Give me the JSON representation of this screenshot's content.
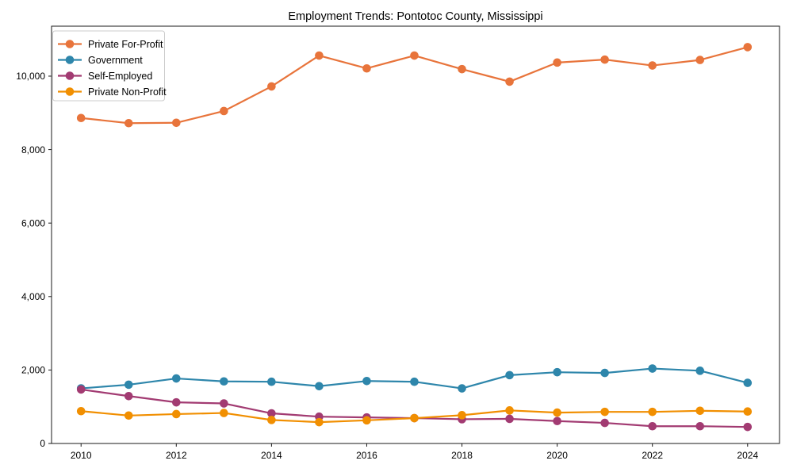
{
  "chart_data": {
    "type": "line",
    "title": "Employment Trends: Pontotoc County, Mississippi",
    "xlabel": "",
    "ylabel": "",
    "x": [
      2010,
      2011,
      2012,
      2013,
      2014,
      2015,
      2016,
      2017,
      2018,
      2019,
      2020,
      2021,
      2022,
      2023,
      2024
    ],
    "series": [
      {
        "name": "Private For-Profit",
        "color": "#e8743b",
        "values": [
          8860,
          8720,
          8730,
          9050,
          9720,
          10560,
          10210,
          10560,
          10190,
          9850,
          10370,
          10450,
          10290,
          10440,
          10790
        ]
      },
      {
        "name": "Government",
        "color": "#2e86ab",
        "values": [
          1500,
          1600,
          1770,
          1690,
          1680,
          1560,
          1700,
          1680,
          1500,
          1860,
          1940,
          1920,
          2040,
          1980,
          1650
        ]
      },
      {
        "name": "Self-Employed",
        "color": "#a23b72",
        "values": [
          1470,
          1290,
          1120,
          1090,
          820,
          730,
          710,
          690,
          660,
          670,
          610,
          560,
          470,
          470,
          450
        ]
      },
      {
        "name": "Private Non-Profit",
        "color": "#f18f01",
        "values": [
          880,
          760,
          800,
          830,
          640,
          580,
          630,
          690,
          770,
          900,
          840,
          860,
          860,
          890,
          870
        ]
      }
    ],
    "xticks": {
      "values": [
        2010,
        2012,
        2014,
        2016,
        2018,
        2020,
        2022,
        2024
      ],
      "labels": [
        "2010",
        "2012",
        "2014",
        "2016",
        "2018",
        "2020",
        "2022",
        "2024"
      ]
    },
    "yticks": {
      "values": [
        0,
        2000,
        4000,
        6000,
        8000,
        10000
      ],
      "labels": [
        "0",
        "2,000",
        "4,000",
        "6,000",
        "8,000",
        "10,000"
      ]
    },
    "xlim": [
      2009.38,
      2024.67
    ],
    "ylim": [
      0,
      11360
    ],
    "grid": false,
    "legend": {
      "position": "upper-left",
      "entries": [
        "Private For-Profit",
        "Government",
        "Self-Employed",
        "Private Non-Profit"
      ]
    },
    "colors": {
      "spine": "#1a1a1a",
      "legend_border": "#cccccc",
      "background": "#ffffff"
    }
  }
}
